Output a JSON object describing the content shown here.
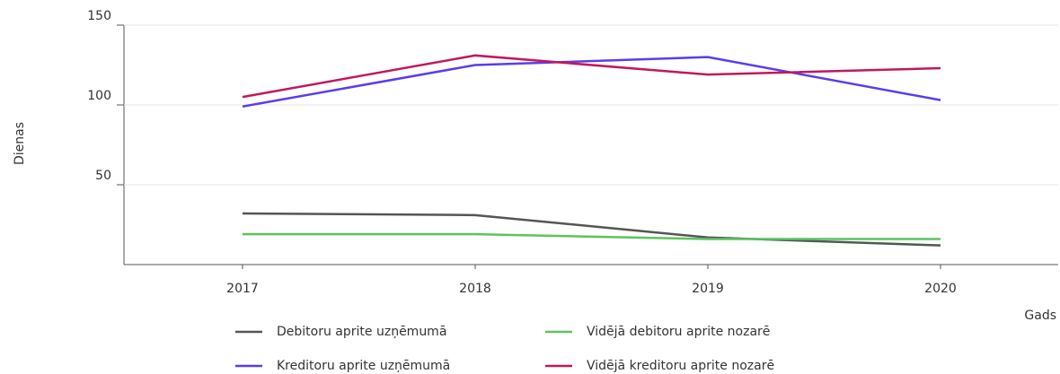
{
  "chart_data": {
    "type": "line",
    "ylabel": "Dienas",
    "xlabel": "Gads",
    "categories": [
      "2017",
      "2018",
      "2019",
      "2020"
    ],
    "series": [
      {
        "name": "Debitoru aprite uzņēmumā",
        "color": "#555555",
        "values": [
          32,
          31,
          17,
          12
        ]
      },
      {
        "name": "Vidējā debitoru aprite nozarē",
        "color": "#5cc45c",
        "values": [
          19,
          19,
          16,
          16
        ]
      },
      {
        "name": "Kreditoru aprite uzņēmumā",
        "color": "#5a3cf0",
        "values": [
          99,
          125,
          130,
          103
        ]
      },
      {
        "name": "Vidējā kreditoru aprite nozarē",
        "color": "#c2185b",
        "values": [
          105,
          131,
          119,
          123
        ]
      }
    ],
    "ylim": [
      0,
      150
    ],
    "yticks": [
      50,
      100,
      150
    ],
    "grid": true
  }
}
